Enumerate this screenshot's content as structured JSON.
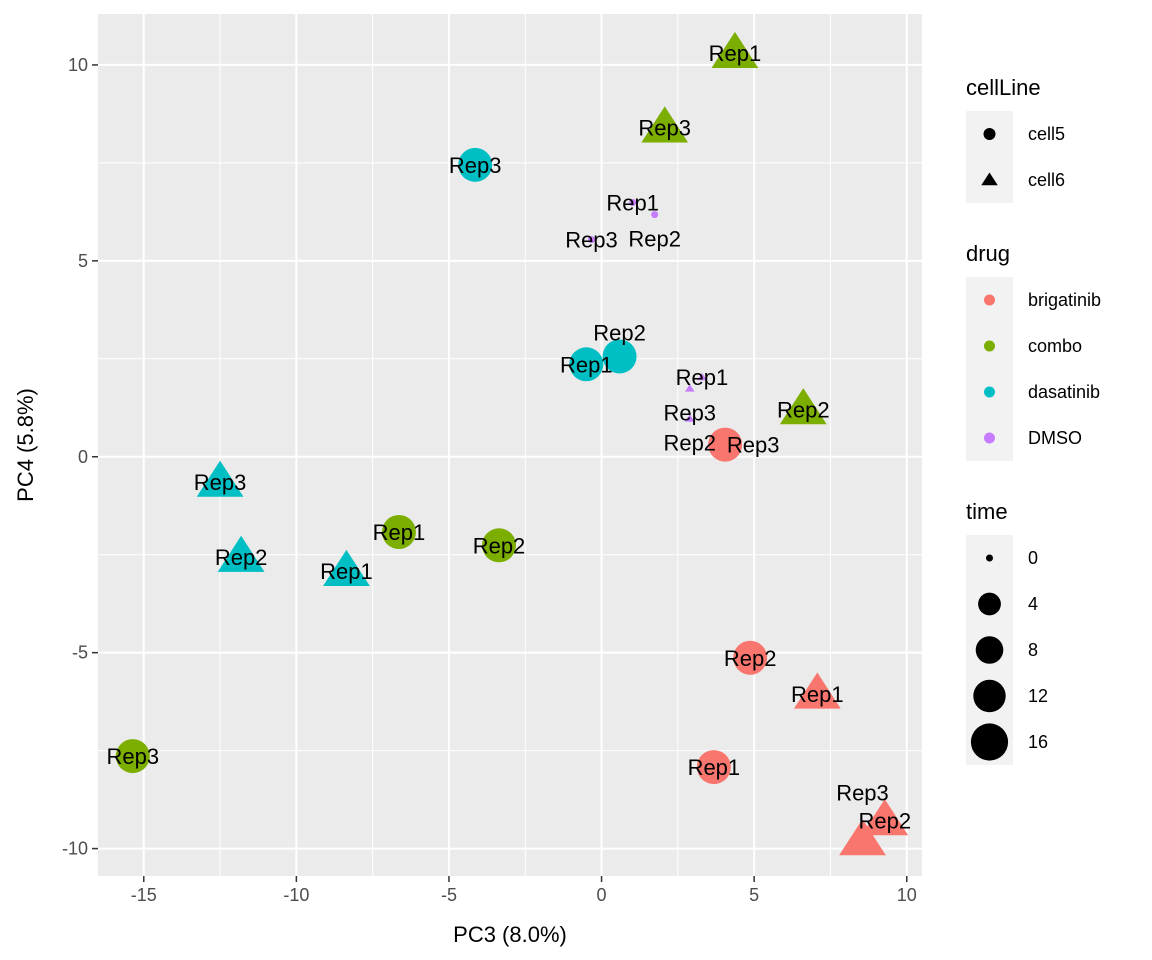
{
  "chart_data": {
    "type": "scatter",
    "xlabel": "PC3 (8.0%)",
    "ylabel": "PC4 (5.8%)",
    "xlim": [
      -16.5,
      10.5
    ],
    "ylim": [
      -10.7,
      11.3
    ],
    "xticks": [
      -15,
      -10,
      -5,
      0,
      5,
      10
    ],
    "yticks": [
      -10,
      -5,
      0,
      5,
      10
    ],
    "grid": true,
    "colors": {
      "brigatinib": "#F8766D",
      "combo": "#7CAE00",
      "dasatinib": "#00BFC4",
      "DMSO": "#C77CFF"
    },
    "legend_position": "right",
    "legends": [
      {
        "title": "cellLine",
        "type": "shape",
        "entries": [
          {
            "label": "cell5",
            "shape": "circle"
          },
          {
            "label": "cell6",
            "shape": "triangle"
          }
        ]
      },
      {
        "title": "drug",
        "type": "color",
        "entries": [
          {
            "label": "brigatinib"
          },
          {
            "label": "combo"
          },
          {
            "label": "dasatinib"
          },
          {
            "label": "DMSO"
          }
        ]
      },
      {
        "title": "time",
        "type": "size",
        "entries": [
          {
            "label": "0",
            "value": 0
          },
          {
            "label": "4",
            "value": 4
          },
          {
            "label": "8",
            "value": 8
          },
          {
            "label": "12",
            "value": 12
          },
          {
            "label": "16",
            "value": 16
          }
        ]
      }
    ],
    "points": [
      {
        "label": "Rep1",
        "x": 4.37,
        "y": 10.3,
        "drug": "combo",
        "cellLine": "cell6",
        "time": 16
      },
      {
        "label": "Rep3",
        "x": 2.07,
        "y": 8.4,
        "drug": "combo",
        "cellLine": "cell6",
        "time": 16
      },
      {
        "label": "Rep3",
        "x": -4.14,
        "y": 7.45,
        "drug": "dasatinib",
        "cellLine": "cell5",
        "time": 16
      },
      {
        "label": "Rep1",
        "x": 1.02,
        "y": 6.49,
        "drug": "DMSO",
        "cellLine": "cell5",
        "time": 0
      },
      {
        "label": "Rep2",
        "x": 1.74,
        "y": 6.18,
        "drug": "DMSO",
        "cellLine": "cell5",
        "time": 0
      },
      {
        "label": "Rep3",
        "x": -0.33,
        "y": 5.54,
        "drug": "DMSO",
        "cellLine": "cell5",
        "time": 0
      },
      {
        "label": "Rep1",
        "x": -0.5,
        "y": 2.36,
        "drug": "dasatinib",
        "cellLine": "cell5",
        "time": 16
      },
      {
        "label": "Rep2",
        "x": 0.59,
        "y": 2.56,
        "drug": "dasatinib",
        "cellLine": "cell5",
        "time": 16
      },
      {
        "label": "Rep1",
        "x": 3.29,
        "y": 2.03,
        "drug": "DMSO",
        "cellLine": "cell6",
        "time": 0
      },
      {
        "label": "Rep3",
        "x": 2.89,
        "y": 1.74,
        "drug": "DMSO",
        "cellLine": "cell6",
        "time": 0
      },
      {
        "label": "Rep2",
        "x": 2.89,
        "y": 0.97,
        "drug": "DMSO",
        "cellLine": "cell6",
        "time": 0
      },
      {
        "label": "Rep3",
        "x": 4.05,
        "y": 0.31,
        "drug": "brigatinib",
        "cellLine": "cell5",
        "time": 16
      },
      {
        "label": "Rep2",
        "x": 6.61,
        "y": 1.21,
        "drug": "combo",
        "cellLine": "cell6",
        "time": 16
      },
      {
        "label": "Rep3",
        "x": -12.5,
        "y": -0.64,
        "drug": "dasatinib",
        "cellLine": "cell6",
        "time": 16
      },
      {
        "label": "Rep2",
        "x": -11.81,
        "y": -2.56,
        "drug": "dasatinib",
        "cellLine": "cell6",
        "time": 16
      },
      {
        "label": "Rep1",
        "x": -8.36,
        "y": -2.92,
        "drug": "dasatinib",
        "cellLine": "cell6",
        "time": 16
      },
      {
        "label": "Rep1",
        "x": -6.64,
        "y": -1.92,
        "drug": "combo",
        "cellLine": "cell5",
        "time": 16
      },
      {
        "label": "Rep2",
        "x": -3.36,
        "y": -2.26,
        "drug": "combo",
        "cellLine": "cell5",
        "time": 16
      },
      {
        "label": "Rep2",
        "x": 4.87,
        "y": -5.13,
        "drug": "brigatinib",
        "cellLine": "cell5",
        "time": 16
      },
      {
        "label": "Rep1",
        "x": 7.07,
        "y": -6.05,
        "drug": "brigatinib",
        "cellLine": "cell6",
        "time": 16
      },
      {
        "label": "Rep3",
        "x": -15.36,
        "y": -7.64,
        "drug": "combo",
        "cellLine": "cell5",
        "time": 16
      },
      {
        "label": "Rep1",
        "x": 3.68,
        "y": -7.92,
        "drug": "brigatinib",
        "cellLine": "cell5",
        "time": 16
      },
      {
        "label": "Rep2",
        "x": 9.28,
        "y": -9.28,
        "drug": "brigatinib",
        "cellLine": "cell6",
        "time": 16
      },
      {
        "label": "Rep3",
        "x": 8.55,
        "y": -9.79,
        "drug": "brigatinib",
        "cellLine": "cell6",
        "time": 16
      }
    ]
  }
}
